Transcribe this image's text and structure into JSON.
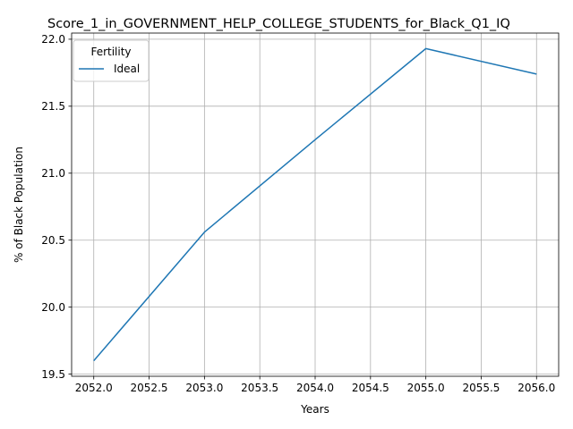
{
  "chart_data": {
    "type": "line",
    "title": "Score_1_in_GOVERNMENT_HELP_COLLEGE_STUDENTS_for_Black_Q1_IQ",
    "xlabel": "Years",
    "ylabel": "% of Black Population",
    "x_ticks": [
      "2052.0",
      "2052.5",
      "2053.0",
      "2053.5",
      "2054.0",
      "2054.5",
      "2055.0",
      "2055.5",
      "2056.0"
    ],
    "y_ticks": [
      "19.5",
      "20.0",
      "20.5",
      "21.0",
      "21.5",
      "22.0"
    ],
    "xlim": [
      2051.8,
      2056.2
    ],
    "ylim": [
      19.484,
      22.046
    ],
    "grid": true,
    "legend": {
      "title": "Fertility",
      "placement": "top-left"
    },
    "series": [
      {
        "name": "Ideal",
        "color": "#1f77b4",
        "x": [
          2052,
          2053,
          2054,
          2055,
          2056
        ],
        "y": [
          19.6,
          20.56,
          21.25,
          21.93,
          21.74
        ]
      }
    ]
  }
}
